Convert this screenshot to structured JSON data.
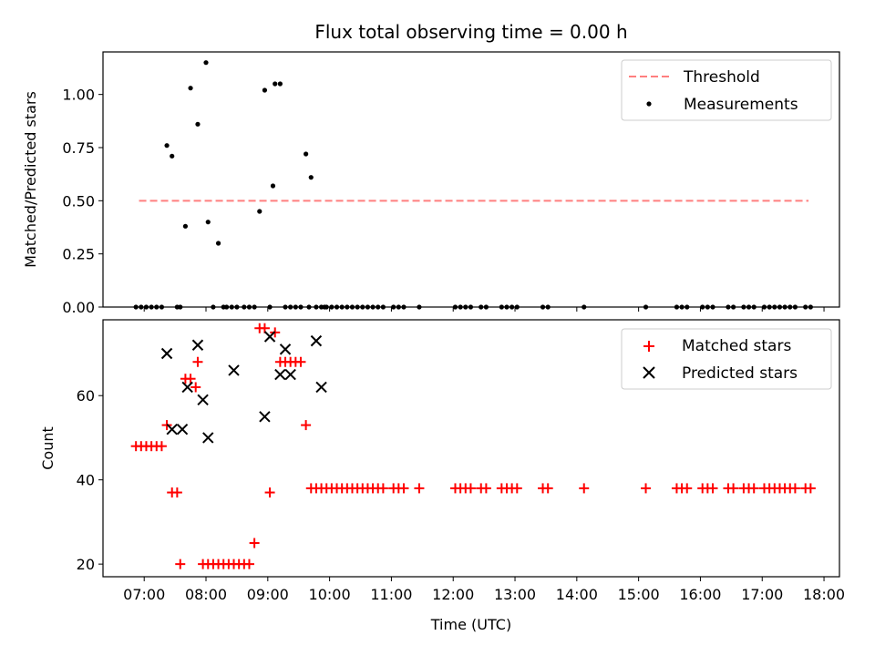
{
  "figure": {
    "title": "Flux total observing time = 0.00 h",
    "xlabel": "Time (UTC)"
  },
  "colors": {
    "threshold": "#ff7f7f",
    "measurements": "#000000",
    "matched": "#ff0000",
    "predicted": "#000000"
  },
  "chart_data": [
    {
      "type": "scatter",
      "ylabel": "Matched/Predicted stars",
      "xlim": [
        "06:20",
        "18:15"
      ],
      "ylim": [
        0,
        1.2
      ],
      "x_ticks": [
        "07:00",
        "08:00",
        "09:00",
        "10:00",
        "11:00",
        "12:00",
        "13:00",
        "14:00",
        "15:00",
        "16:00",
        "17:00",
        "18:00"
      ],
      "x_tick_labels_shown": false,
      "y_ticks": [
        "0.00",
        "0.25",
        "0.50",
        "0.75",
        "1.00"
      ],
      "legend": {
        "placement": "upper right",
        "entries": [
          "Threshold",
          "Measurements"
        ]
      },
      "series": [
        {
          "name": "Threshold",
          "style": "dashed-line",
          "x": [
            "06:55",
            "17:45"
          ],
          "y": [
            0.5,
            0.5
          ]
        },
        {
          "name": "Measurements",
          "style": "dot",
          "x": [
            "06:52",
            "06:57",
            "07:02",
            "07:07",
            "07:12",
            "07:17",
            "07:22",
            "07:27",
            "07:32",
            "07:35",
            "07:40",
            "07:45",
            "07:52",
            "08:00",
            "08:02",
            "08:07",
            "08:12",
            "08:17",
            "08:20",
            "08:25",
            "08:30",
            "08:37",
            "08:42",
            "08:47",
            "08:52",
            "08:57",
            "09:02",
            "09:05",
            "09:07",
            "09:12",
            "09:17",
            "09:22",
            "09:27",
            "09:32",
            "09:37",
            "09:40",
            "09:42",
            "09:47",
            "09:52",
            "09:55",
            "09:57",
            "10:02",
            "10:07",
            "10:12",
            "10:17",
            "10:22",
            "10:27",
            "10:32",
            "10:37",
            "10:42",
            "10:47",
            "10:52",
            "11:02",
            "11:07",
            "11:12",
            "11:27",
            "12:02",
            "12:07",
            "12:12",
            "12:17",
            "12:27",
            "12:32",
            "12:47",
            "12:52",
            "12:57",
            "13:02",
            "13:27",
            "13:32",
            "14:07",
            "15:07",
            "15:37",
            "15:42",
            "15:47",
            "16:02",
            "16:07",
            "16:12",
            "16:27",
            "16:32",
            "16:42",
            "16:47",
            "16:52",
            "17:02",
            "17:07",
            "17:12",
            "17:17",
            "17:22",
            "17:27",
            "17:32",
            "17:42",
            "17:47"
          ],
          "y": [
            0,
            0,
            0,
            0,
            0,
            0,
            0.76,
            0.71,
            0,
            0,
            0.38,
            1.03,
            0.86,
            1.15,
            0.4,
            0,
            0.3,
            0,
            0,
            0,
            0,
            0,
            0,
            0,
            0.45,
            1.02,
            0,
            0.57,
            1.05,
            1.05,
            0,
            0,
            0,
            0,
            0.72,
            0,
            0.61,
            0,
            0,
            0,
            0,
            0,
            0,
            0,
            0,
            0,
            0,
            0,
            0,
            0,
            0,
            0,
            0,
            0,
            0,
            0,
            0,
            0,
            0,
            0,
            0,
            0,
            0,
            0,
            0,
            0,
            0,
            0,
            0,
            0,
            0,
            0,
            0,
            0,
            0,
            0,
            0,
            0,
            0,
            0,
            0,
            0,
            0,
            0,
            0,
            0,
            0,
            0,
            0,
            0
          ]
        }
      ]
    },
    {
      "type": "scatter",
      "ylabel": "Count",
      "xlim": [
        "06:20",
        "18:15"
      ],
      "ylim": [
        17,
        78
      ],
      "x_ticks": [
        "07:00",
        "08:00",
        "09:00",
        "10:00",
        "11:00",
        "12:00",
        "13:00",
        "14:00",
        "15:00",
        "16:00",
        "17:00",
        "18:00"
      ],
      "y_ticks": [
        "20",
        "40",
        "60"
      ],
      "legend": {
        "placement": "upper right",
        "entries": [
          "Matched stars",
          "Predicted stars"
        ]
      },
      "series": [
        {
          "name": "Matched stars",
          "marker": "+",
          "x": [
            "06:52",
            "06:57",
            "07:02",
            "07:07",
            "07:12",
            "07:17",
            "07:22",
            "07:27",
            "07:32",
            "07:35",
            "07:40",
            "07:45",
            "07:50",
            "07:52",
            "07:57",
            "08:02",
            "08:07",
            "08:12",
            "08:17",
            "08:22",
            "08:27",
            "08:32",
            "08:37",
            "08:42",
            "08:47",
            "08:52",
            "08:57",
            "09:02",
            "09:07",
            "09:12",
            "09:17",
            "09:22",
            "09:27",
            "09:32",
            "09:37",
            "09:42",
            "09:47",
            "09:52",
            "09:57",
            "10:02",
            "10:07",
            "10:12",
            "10:17",
            "10:22",
            "10:27",
            "10:32",
            "10:37",
            "10:42",
            "10:47",
            "10:52",
            "11:02",
            "11:07",
            "11:12",
            "11:27",
            "12:02",
            "12:07",
            "12:12",
            "12:17",
            "12:27",
            "12:32",
            "12:47",
            "12:52",
            "12:57",
            "13:02",
            "13:27",
            "13:32",
            "14:07",
            "15:07",
            "15:37",
            "15:42",
            "15:47",
            "16:02",
            "16:07",
            "16:12",
            "16:27",
            "16:32",
            "16:42",
            "16:47",
            "16:52",
            "17:02",
            "17:07",
            "17:12",
            "17:17",
            "17:22",
            "17:27",
            "17:32",
            "17:42",
            "17:47"
          ],
          "y": [
            48,
            48,
            48,
            48,
            48,
            48,
            53,
            37,
            37,
            20,
            64,
            64,
            62,
            68,
            20,
            20,
            20,
            20,
            20,
            20,
            20,
            20,
            20,
            20,
            25,
            76,
            76,
            37,
            75,
            68,
            68,
            68,
            68,
            68,
            53,
            38,
            38,
            38,
            38,
            38,
            38,
            38,
            38,
            38,
            38,
            38,
            38,
            38,
            38,
            38,
            38,
            38,
            38,
            38,
            38,
            38,
            38,
            38,
            38,
            38,
            38,
            38,
            38,
            38,
            38,
            38,
            38,
            38,
            38,
            38,
            38,
            38,
            38,
            38,
            38,
            38,
            38,
            38,
            38,
            38,
            38,
            38,
            38,
            38,
            38,
            38,
            38,
            38
          ]
        },
        {
          "name": "Predicted stars",
          "marker": "x",
          "x": [
            "07:22",
            "07:27",
            "07:37",
            "07:42",
            "07:52",
            "07:57",
            "08:02",
            "08:27",
            "08:57",
            "09:02",
            "09:12",
            "09:17",
            "09:22",
            "09:47",
            "09:52"
          ],
          "y": [
            70,
            52,
            52,
            62,
            72,
            59,
            50,
            66,
            55,
            74,
            65,
            71,
            65,
            73,
            62
          ]
        }
      ]
    }
  ]
}
